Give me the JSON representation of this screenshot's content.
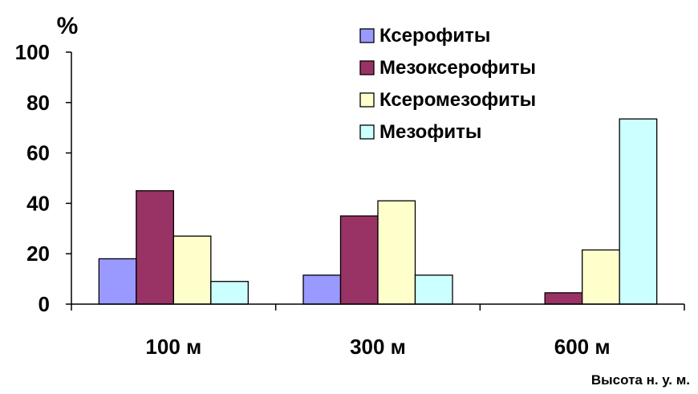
{
  "chart_data": {
    "type": "bar",
    "title": "",
    "ylabel": "%",
    "xlabel": "Высота н. у. м.",
    "categories": [
      "100 м",
      "300 м",
      "600 м"
    ],
    "series": [
      {
        "name": "Ксерофиты",
        "values": [
          18,
          11.5,
          0
        ],
        "color": "#9999ff"
      },
      {
        "name": "Мезоксерофиты",
        "values": [
          45,
          35,
          4.5
        ],
        "color": "#993366"
      },
      {
        "name": "Ксеромезофиты",
        "values": [
          27,
          41,
          21.5
        ],
        "color": "#ffffcc"
      },
      {
        "name": "Мезофиты",
        "values": [
          9,
          11.5,
          73.5
        ],
        "color": "#ccffff"
      }
    ],
    "ylim": [
      0,
      100
    ],
    "yticks": [
      0,
      20,
      40,
      60,
      80,
      100
    ],
    "grid": false,
    "legend_position": "top-right"
  }
}
